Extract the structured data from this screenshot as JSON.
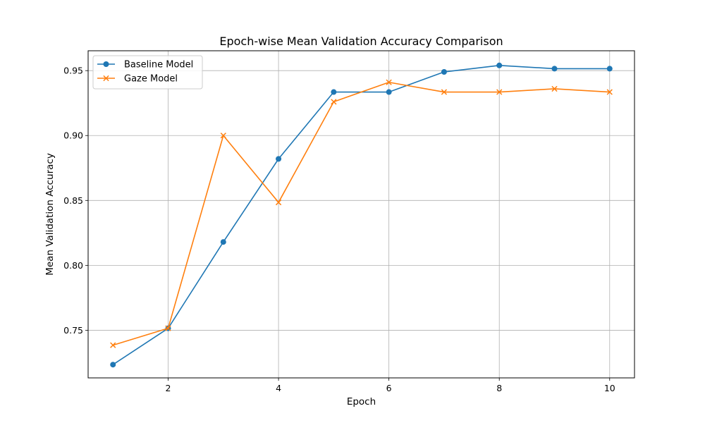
{
  "chart_data": {
    "type": "line",
    "title": "Epoch-wise Mean Validation Accuracy Comparison",
    "xlabel": "Epoch",
    "ylabel": "Mean Validation Accuracy",
    "x": [
      1,
      2,
      3,
      4,
      5,
      6,
      7,
      8,
      9,
      10
    ],
    "xticks": [
      2,
      4,
      6,
      8,
      10
    ],
    "xlim": [
      0.55,
      10.45
    ],
    "yticks": [
      0.75,
      0.8,
      0.85,
      0.9,
      0.95
    ],
    "ytick_labels": [
      "0.75",
      "0.80",
      "0.85",
      "0.90",
      "0.95"
    ],
    "ylim": [
      0.7133,
      0.9653
    ],
    "grid": true,
    "legend_position": "top-left",
    "series": [
      {
        "name": "Baseline Model",
        "marker": "circle",
        "color": "#1f77b4",
        "values": [
          0.7235,
          0.7515,
          0.818,
          0.882,
          0.9335,
          0.9335,
          0.949,
          0.954,
          0.9515,
          0.9515
        ]
      },
      {
        "name": "Gaze Model",
        "marker": "x",
        "color": "#ff7f0e",
        "values": [
          0.7385,
          0.7515,
          0.9,
          0.8485,
          0.926,
          0.941,
          0.9335,
          0.9335,
          0.936,
          0.9335
        ]
      }
    ]
  }
}
